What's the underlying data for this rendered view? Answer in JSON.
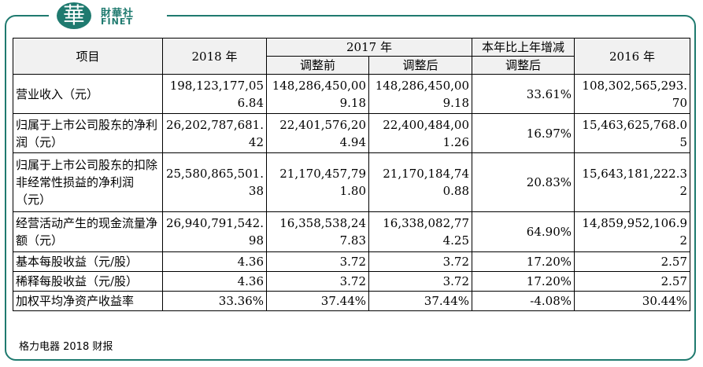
{
  "brand": {
    "logo_char": "華",
    "name_cn": "財華社",
    "name_en": "FINET"
  },
  "table": {
    "headers": {
      "item": "项目",
      "y2018": "2018 年",
      "y2017": "2017 年",
      "y2017_before": "调整前",
      "y2017_after": "调整后",
      "change": "本年比上年增减",
      "change_sub": "调整后",
      "y2016": "2016 年"
    },
    "rows": [
      {
        "label": "营业收入（元）",
        "y2018": "198,123,177,056.84",
        "y2017_before": "148,286,450,009.18",
        "y2017_after": "148,286,450,009.18",
        "change": "33.61%",
        "y2016": "108,302,565,293.70"
      },
      {
        "label": "归属于上市公司股东的净利润（元）",
        "y2018": "26,202,787,681.42",
        "y2017_before": "22,401,576,204.94",
        "y2017_after": "22,400,484,001.26",
        "change": "16.97%",
        "y2016": "15,463,625,768.05"
      },
      {
        "label": "归属于上市公司股东的扣除非经常性损益的净利润（元）",
        "y2018": "25,580,865,501.38",
        "y2017_before": "21,170,457,791.80",
        "y2017_after": "21,170,184,740.88",
        "change": "20.83%",
        "y2016": "15,643,181,222.32"
      },
      {
        "label": "经营活动产生的现金流量净额（元）",
        "y2018": "26,940,791,542.98",
        "y2017_before": "16,358,538,247.83",
        "y2017_after": "16,338,082,774.25",
        "change": "64.90%",
        "y2016": "14,859,952,106.92"
      },
      {
        "label": "基本每股收益（元/股）",
        "y2018": "4.36",
        "y2017_before": "3.72",
        "y2017_after": "3.72",
        "change": "17.20%",
        "y2016": "2.57"
      },
      {
        "label": "稀释每股收益（元/股）",
        "y2018": "4.36",
        "y2017_before": "3.72",
        "y2017_after": "3.72",
        "change": "17.20%",
        "y2016": "2.57"
      },
      {
        "label": "加权平均净资产收益率",
        "y2018": "33.36%",
        "y2017_before": "37.44%",
        "y2017_after": "37.44%",
        "change": "-4.08%",
        "y2016": "30.44%"
      }
    ]
  },
  "footer": "格力电器 2018 财报",
  "colors": {
    "brand": "#1f7a6f",
    "header_bg": "#f1f1f1"
  }
}
